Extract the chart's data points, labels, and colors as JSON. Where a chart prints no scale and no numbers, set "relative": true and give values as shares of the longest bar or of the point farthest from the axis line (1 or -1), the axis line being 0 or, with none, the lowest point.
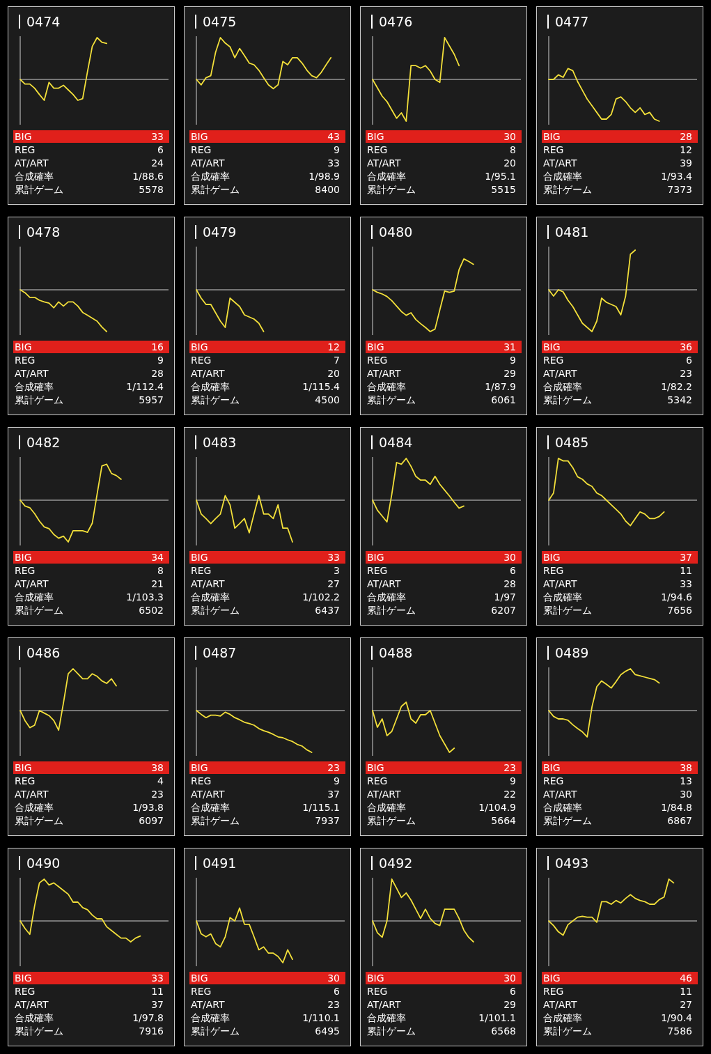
{
  "chart_data": [
    {
      "type": "line",
      "relative": true,
      "title": "0474",
      "categories": [
        null,
        null,
        null,
        null,
        null,
        null,
        null,
        null,
        null,
        null,
        null,
        null,
        null,
        null,
        null,
        null,
        null,
        null,
        null
      ],
      "series": [
        {
          "color": "#f2df3a",
          "values": [
            0,
            -0.11,
            -0.11,
            -0.21,
            -0.36,
            -0.5,
            -0.07,
            -0.21,
            -0.21,
            -0.14,
            -0.25,
            -0.36,
            -0.5,
            -0.46,
            0.18,
            0.79,
            1,
            0.89,
            0.86
          ]
        }
      ],
      "annotations": [
        "BIG",
        "33",
        "REG",
        "6",
        "AT/ART",
        "24",
        "合成確率",
        "1/88.6",
        "累計ゲーム",
        "5578"
      ]
    },
    {
      "type": "line",
      "relative": true,
      "title": "0475",
      "categories": [
        null,
        null,
        null,
        null,
        null,
        null,
        null,
        null,
        null,
        null,
        null,
        null,
        null,
        null,
        null,
        null,
        null,
        null,
        null,
        null,
        null,
        null,
        null,
        null,
        null,
        null,
        null,
        null,
        null
      ],
      "series": [
        {
          "color": "#f2df3a",
          "values": [
            0,
            -0.13,
            0.04,
            0.09,
            0.65,
            1,
            0.87,
            0.78,
            0.52,
            0.74,
            0.57,
            0.39,
            0.35,
            0.22,
            0.04,
            -0.13,
            -0.22,
            -0.13,
            0.43,
            0.35,
            0.52,
            0.52,
            0.39,
            0.22,
            0.09,
            0.04,
            0.17,
            0.35,
            0.52
          ]
        }
      ],
      "annotations": [
        "BIG",
        "43",
        "REG",
        "9",
        "AT/ART",
        "33",
        "合成確率",
        "1/98.9",
        "累計ゲーム",
        "8400"
      ]
    },
    {
      "type": "line",
      "relative": true,
      "title": "0476",
      "categories": [
        null,
        null,
        null,
        null,
        null,
        null,
        null,
        null,
        null,
        null,
        null,
        null,
        null,
        null,
        null,
        null,
        null,
        null,
        null
      ],
      "series": [
        {
          "color": "#f2df3a",
          "values": [
            0,
            -0.2,
            -0.4,
            -0.53,
            -0.73,
            -0.93,
            -0.8,
            -1,
            0.33,
            0.33,
            0.27,
            0.33,
            0.2,
            0,
            -0.07,
            1,
            0.8,
            0.6,
            0.33
          ]
        }
      ],
      "annotations": [
        "BIG",
        "30",
        "REG",
        "8",
        "AT/ART",
        "20",
        "合成確率",
        "1/95.1",
        "累計ゲーム",
        "5515"
      ]
    },
    {
      "type": "line",
      "relative": true,
      "title": "0477",
      "categories": [
        null,
        null,
        null,
        null,
        null,
        null,
        null,
        null,
        null,
        null,
        null,
        null,
        null,
        null,
        null,
        null,
        null,
        null,
        null,
        null,
        null,
        null,
        null,
        null
      ],
      "series": [
        {
          "color": "#f2df3a",
          "values": [
            0,
            0,
            0.11,
            0.05,
            0.26,
            0.21,
            -0.05,
            -0.26,
            -0.47,
            -0.63,
            -0.79,
            -0.95,
            -0.95,
            -0.84,
            -0.47,
            -0.42,
            -0.53,
            -0.68,
            -0.79,
            -0.68,
            -0.84,
            -0.79,
            -0.95,
            -1
          ]
        }
      ],
      "annotations": [
        "BIG",
        "28",
        "REG",
        "12",
        "AT/ART",
        "39",
        "合成確率",
        "1/93.4",
        "累計ゲーム",
        "7373"
      ]
    },
    {
      "type": "line",
      "relative": true,
      "title": "0478",
      "categories": [
        null,
        null,
        null,
        null,
        null,
        null,
        null,
        null,
        null,
        null,
        null,
        null,
        null,
        null,
        null,
        null,
        null,
        null,
        null
      ],
      "series": [
        {
          "color": "#f2df3a",
          "values": [
            0,
            -0.07,
            -0.18,
            -0.18,
            -0.25,
            -0.29,
            -0.32,
            -0.43,
            -0.29,
            -0.39,
            -0.29,
            -0.29,
            -0.39,
            -0.54,
            -0.61,
            -0.68,
            -0.75,
            -0.89,
            -1
          ]
        }
      ],
      "annotations": [
        "BIG",
        "16",
        "REG",
        "9",
        "AT/ART",
        "28",
        "合成確率",
        "1/112.4",
        "累計ゲーム",
        "5957"
      ]
    },
    {
      "type": "line",
      "relative": true,
      "title": "0479",
      "categories": [
        null,
        null,
        null,
        null,
        null,
        null,
        null,
        null,
        null,
        null,
        null,
        null,
        null,
        null,
        null
      ],
      "series": [
        {
          "color": "#f2df3a",
          "values": [
            0,
            -0.2,
            -0.35,
            -0.35,
            -0.55,
            -0.75,
            -0.9,
            -0.2,
            -0.3,
            -0.4,
            -0.6,
            -0.65,
            -0.7,
            -0.8,
            -1
          ]
        }
      ],
      "annotations": [
        "BIG",
        "12",
        "REG",
        "7",
        "AT/ART",
        "20",
        "合成確率",
        "1/115.4",
        "累計ゲーム",
        "4500"
      ]
    },
    {
      "type": "line",
      "relative": true,
      "title": "0480",
      "categories": [
        null,
        null,
        null,
        null,
        null,
        null,
        null,
        null,
        null,
        null,
        null,
        null,
        null,
        null,
        null,
        null,
        null,
        null,
        null,
        null,
        null,
        null
      ],
      "series": [
        {
          "color": "#f2df3a",
          "values": [
            0,
            -0.06,
            -0.1,
            -0.16,
            -0.26,
            -0.39,
            -0.52,
            -0.61,
            -0.55,
            -0.71,
            -0.81,
            -0.9,
            -1,
            -0.94,
            -0.48,
            -0.03,
            -0.06,
            -0.03,
            0.48,
            0.74,
            0.68,
            0.61
          ]
        }
      ],
      "annotations": [
        "BIG",
        "31",
        "REG",
        "9",
        "AT/ART",
        "29",
        "合成確率",
        "1/87.9",
        "累計ゲーム",
        "6061"
      ]
    },
    {
      "type": "line",
      "relative": true,
      "title": "0481",
      "categories": [
        null,
        null,
        null,
        null,
        null,
        null,
        null,
        null,
        null,
        null,
        null,
        null,
        null,
        null,
        null,
        null,
        null,
        null,
        null
      ],
      "series": [
        {
          "color": "#f2df3a",
          "values": [
            0,
            -0.15,
            0,
            -0.05,
            -0.25,
            -0.4,
            -0.6,
            -0.8,
            -0.9,
            -1,
            -0.75,
            -0.2,
            -0.3,
            -0.35,
            -0.4,
            -0.6,
            -0.15,
            0.85,
            0.95
          ]
        }
      ],
      "annotations": [
        "BIG",
        "36",
        "REG",
        "6",
        "AT/ART",
        "23",
        "合成確率",
        "1/82.2",
        "累計ゲーム",
        "5342"
      ]
    },
    {
      "type": "line",
      "relative": true,
      "title": "0482",
      "categories": [
        null,
        null,
        null,
        null,
        null,
        null,
        null,
        null,
        null,
        null,
        null,
        null,
        null,
        null,
        null,
        null,
        null,
        null,
        null,
        null,
        null,
        null
      ],
      "series": [
        {
          "color": "#f2df3a",
          "values": [
            0,
            -0.14,
            -0.18,
            -0.32,
            -0.5,
            -0.64,
            -0.68,
            -0.82,
            -0.91,
            -0.86,
            -1,
            -0.73,
            -0.73,
            -0.73,
            -0.77,
            -0.55,
            0.14,
            0.82,
            0.86,
            0.64,
            0.59,
            0.5
          ]
        }
      ],
      "annotations": [
        "BIG",
        "34",
        "REG",
        "8",
        "AT/ART",
        "21",
        "合成確率",
        "1/103.3",
        "累計ゲーム",
        "6502"
      ]
    },
    {
      "type": "line",
      "relative": true,
      "title": "0483",
      "categories": [
        null,
        null,
        null,
        null,
        null,
        null,
        null,
        null,
        null,
        null,
        null,
        null,
        null,
        null,
        null,
        null,
        null,
        null,
        null,
        null,
        null
      ],
      "series": [
        {
          "color": "#f2df3a",
          "values": [
            0,
            -0.33,
            -0.44,
            -0.56,
            -0.44,
            -0.33,
            0.11,
            -0.11,
            -0.67,
            -0.56,
            -0.44,
            -0.78,
            -0.33,
            0.11,
            -0.33,
            -0.33,
            -0.44,
            -0.11,
            -0.67,
            -0.67,
            -1
          ]
        }
      ],
      "annotations": [
        "BIG",
        "33",
        "REG",
        "3",
        "AT/ART",
        "27",
        "合成確率",
        "1/102.2",
        "累計ゲーム",
        "6437"
      ]
    },
    {
      "type": "line",
      "relative": true,
      "title": "0484",
      "categories": [
        null,
        null,
        null,
        null,
        null,
        null,
        null,
        null,
        null,
        null,
        null,
        null,
        null,
        null,
        null,
        null,
        null,
        null,
        null,
        null
      ],
      "series": [
        {
          "color": "#f2df3a",
          "values": [
            0,
            -0.24,
            -0.38,
            -0.52,
            0.14,
            0.9,
            0.86,
            1,
            0.81,
            0.57,
            0.48,
            0.48,
            0.38,
            0.57,
            0.38,
            0.24,
            0.1,
            -0.05,
            -0.19,
            -0.14
          ]
        }
      ],
      "annotations": [
        "BIG",
        "30",
        "REG",
        "6",
        "AT/ART",
        "28",
        "合成確率",
        "1/97",
        "累計ゲーム",
        "6207"
      ]
    },
    {
      "type": "line",
      "relative": true,
      "title": "0485",
      "categories": [
        null,
        null,
        null,
        null,
        null,
        null,
        null,
        null,
        null,
        null,
        null,
        null,
        null,
        null,
        null,
        null,
        null,
        null,
        null,
        null,
        null,
        null,
        null,
        null,
        null
      ],
      "series": [
        {
          "color": "#f2df3a",
          "values": [
            0,
            0.17,
            1,
            0.94,
            0.94,
            0.78,
            0.56,
            0.5,
            0.39,
            0.33,
            0.17,
            0.11,
            0,
            -0.11,
            -0.22,
            -0.33,
            -0.5,
            -0.61,
            -0.44,
            -0.28,
            -0.33,
            -0.44,
            -0.44,
            -0.39,
            -0.28
          ]
        }
      ],
      "annotations": [
        "BIG",
        "37",
        "REG",
        "11",
        "AT/ART",
        "33",
        "合成確率",
        "1/94.6",
        "累計ゲーム",
        "7656"
      ]
    },
    {
      "type": "line",
      "relative": true,
      "title": "0486",
      "categories": [
        null,
        null,
        null,
        null,
        null,
        null,
        null,
        null,
        null,
        null,
        null,
        null,
        null,
        null,
        null,
        null,
        null,
        null,
        null,
        null,
        null
      ],
      "series": [
        {
          "color": "#f2df3a",
          "values": [
            0,
            -0.24,
            -0.41,
            -0.35,
            0,
            -0.06,
            -0.12,
            -0.24,
            -0.47,
            0.18,
            0.88,
            1,
            0.88,
            0.76,
            0.76,
            0.88,
            0.82,
            0.71,
            0.65,
            0.76,
            0.59
          ]
        }
      ],
      "annotations": [
        "BIG",
        "38",
        "REG",
        "4",
        "AT/ART",
        "23",
        "合成確率",
        "1/93.8",
        "累計ゲーム",
        "6097"
      ]
    },
    {
      "type": "line",
      "relative": true,
      "title": "0487",
      "categories": [
        null,
        null,
        null,
        null,
        null,
        null,
        null,
        null,
        null,
        null,
        null,
        null,
        null,
        null,
        null,
        null,
        null,
        null,
        null,
        null,
        null,
        null,
        null,
        null,
        null
      ],
      "series": [
        {
          "color": "#f2df3a",
          "values": [
            0,
            -0.09,
            -0.17,
            -0.11,
            -0.11,
            -0.13,
            -0.04,
            -0.09,
            -0.17,
            -0.22,
            -0.28,
            -0.31,
            -0.35,
            -0.43,
            -0.48,
            -0.52,
            -0.57,
            -0.63,
            -0.65,
            -0.7,
            -0.74,
            -0.81,
            -0.85,
            -0.94,
            -1
          ]
        }
      ],
      "annotations": [
        "BIG",
        "23",
        "REG",
        "9",
        "AT/ART",
        "37",
        "合成確率",
        "1/115.1",
        "累計ゲーム",
        "7937"
      ]
    },
    {
      "type": "line",
      "relative": true,
      "title": "0488",
      "categories": [
        null,
        null,
        null,
        null,
        null,
        null,
        null,
        null,
        null,
        null,
        null,
        null,
        null,
        null,
        null,
        null,
        null,
        null
      ],
      "series": [
        {
          "color": "#f2df3a",
          "values": [
            0,
            -0.4,
            -0.2,
            -0.6,
            -0.5,
            -0.2,
            0.1,
            0.2,
            -0.2,
            -0.3,
            -0.1,
            -0.1,
            0,
            -0.3,
            -0.6,
            -0.8,
            -1,
            -0.9
          ]
        }
      ],
      "annotations": [
        "BIG",
        "23",
        "REG",
        "9",
        "AT/ART",
        "22",
        "合成確率",
        "1/104.9",
        "累計ゲーム",
        "5664"
      ]
    },
    {
      "type": "line",
      "relative": true,
      "title": "0489",
      "categories": [
        null,
        null,
        null,
        null,
        null,
        null,
        null,
        null,
        null,
        null,
        null,
        null,
        null,
        null,
        null,
        null,
        null,
        null,
        null,
        null,
        null,
        null,
        null,
        null
      ],
      "series": [
        {
          "color": "#f2df3a",
          "values": [
            0,
            -0.14,
            -0.2,
            -0.2,
            -0.23,
            -0.34,
            -0.43,
            -0.51,
            -0.63,
            0.09,
            0.57,
            0.71,
            0.63,
            0.54,
            0.69,
            0.86,
            0.94,
            1,
            0.86,
            0.83,
            0.8,
            0.77,
            0.74,
            0.66
          ]
        }
      ],
      "annotations": [
        "BIG",
        "38",
        "REG",
        "13",
        "AT/ART",
        "30",
        "合成確率",
        "1/84.8",
        "累計ゲーム",
        "6867"
      ]
    },
    {
      "type": "line",
      "relative": true,
      "title": "0490",
      "categories": [
        null,
        null,
        null,
        null,
        null,
        null,
        null,
        null,
        null,
        null,
        null,
        null,
        null,
        null,
        null,
        null,
        null,
        null,
        null,
        null,
        null,
        null,
        null,
        null,
        null,
        null
      ],
      "series": [
        {
          "color": "#f2df3a",
          "values": [
            0,
            -0.18,
            -0.32,
            0.36,
            0.91,
            1,
            0.86,
            0.91,
            0.82,
            0.73,
            0.64,
            0.45,
            0.45,
            0.32,
            0.27,
            0.14,
            0.05,
            0.05,
            -0.14,
            -0.23,
            -0.32,
            -0.41,
            -0.41,
            -0.5,
            -0.41,
            -0.36
          ]
        }
      ],
      "annotations": [
        "BIG",
        "33",
        "REG",
        "11",
        "AT/ART",
        "37",
        "合成確率",
        "1/97.8",
        "累計ゲーム",
        "7916"
      ]
    },
    {
      "type": "line",
      "relative": true,
      "title": "0491",
      "categories": [
        null,
        null,
        null,
        null,
        null,
        null,
        null,
        null,
        null,
        null,
        null,
        null,
        null,
        null,
        null,
        null,
        null,
        null,
        null,
        null,
        null
      ],
      "series": [
        {
          "color": "#f2df3a",
          "values": [
            0,
            -0.31,
            -0.38,
            -0.31,
            -0.54,
            -0.62,
            -0.38,
            0.08,
            0,
            0.31,
            -0.08,
            -0.08,
            -0.38,
            -0.69,
            -0.62,
            -0.77,
            -0.77,
            -0.85,
            -1,
            -0.69,
            -0.92
          ]
        }
      ],
      "annotations": [
        "BIG",
        "30",
        "REG",
        "6",
        "AT/ART",
        "23",
        "合成確率",
        "1/110.1",
        "累計ゲーム",
        "6495"
      ]
    },
    {
      "type": "line",
      "relative": true,
      "title": "0492",
      "categories": [
        null,
        null,
        null,
        null,
        null,
        null,
        null,
        null,
        null,
        null,
        null,
        null,
        null,
        null,
        null,
        null,
        null,
        null,
        null,
        null,
        null,
        null
      ],
      "series": [
        {
          "color": "#f2df3a",
          "values": [
            0,
            -0.28,
            -0.39,
            0,
            1,
            0.78,
            0.56,
            0.67,
            0.5,
            0.28,
            0.06,
            0.28,
            0.06,
            -0.06,
            -0.11,
            0.28,
            0.28,
            0.28,
            0.06,
            -0.22,
            -0.39,
            -0.5
          ]
        }
      ],
      "annotations": [
        "BIG",
        "30",
        "REG",
        "6",
        "AT/ART",
        "29",
        "合成確率",
        "1/101.1",
        "累計ゲーム",
        "6568"
      ]
    },
    {
      "type": "line",
      "relative": true,
      "title": "0493",
      "categories": [
        null,
        null,
        null,
        null,
        null,
        null,
        null,
        null,
        null,
        null,
        null,
        null,
        null,
        null,
        null,
        null,
        null,
        null,
        null,
        null,
        null,
        null,
        null,
        null,
        null,
        null,
        null
      ],
      "series": [
        {
          "color": "#f2df3a",
          "values": [
            0,
            -0.11,
            -0.26,
            -0.34,
            -0.09,
            0,
            0.09,
            0.11,
            0.09,
            0.09,
            -0.03,
            0.46,
            0.46,
            0.4,
            0.49,
            0.43,
            0.54,
            0.63,
            0.54,
            0.49,
            0.46,
            0.4,
            0.4,
            0.51,
            0.57,
            1,
            0.91
          ]
        }
      ],
      "annotations": [
        "BIG",
        "46",
        "REG",
        "11",
        "AT/ART",
        "27",
        "合成確率",
        "1/90.4",
        "累計ゲーム",
        "7586"
      ]
    }
  ]
}
